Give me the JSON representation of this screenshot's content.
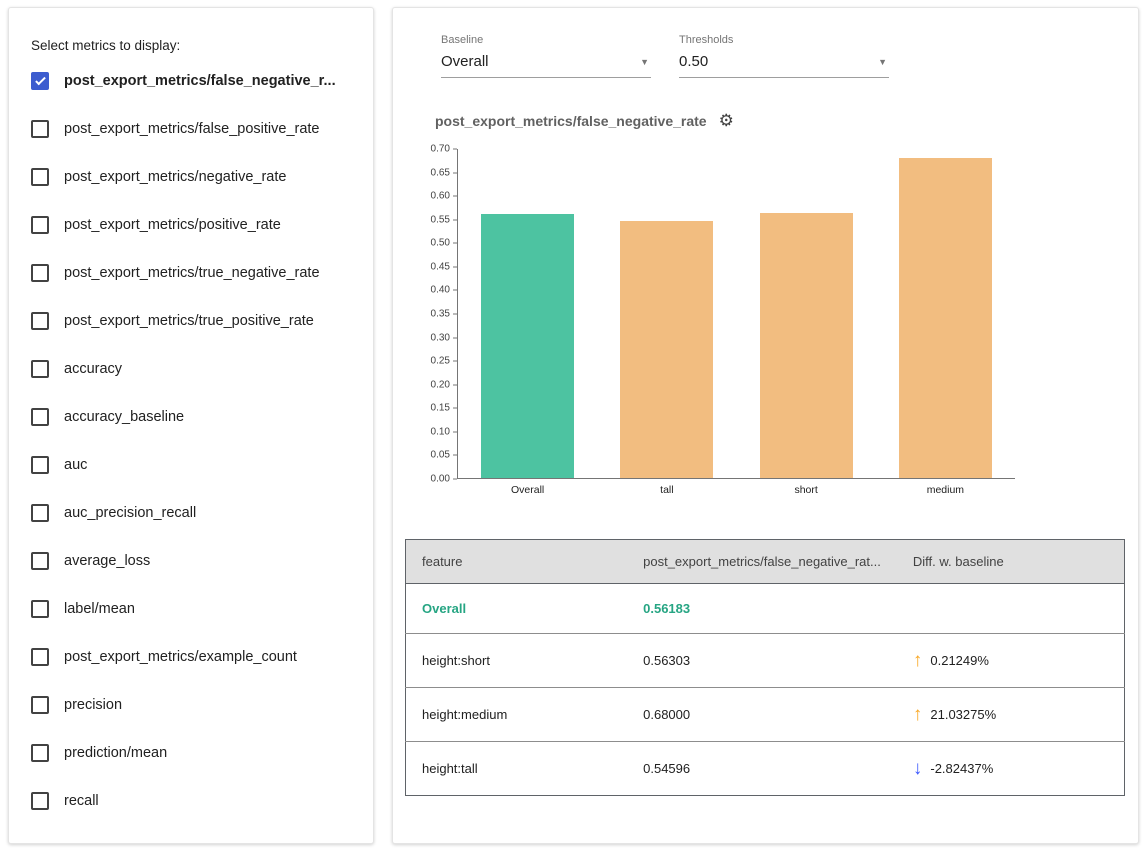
{
  "colors": {
    "teal_bar": "#4dc3a1",
    "teal_text": "#26a583",
    "orange_bar": "#f2bd80",
    "up_arrow": "#f9a825",
    "down_arrow": "#3d5afe",
    "checkbox_checked": "#3c5ccf"
  },
  "icons": {
    "gear": "⚙",
    "dropdown_arrow": "▼",
    "trend_up": "↑",
    "trend_down": "↓"
  },
  "sidebar": {
    "title": "Select metrics to display:",
    "metrics": [
      {
        "label": "post_export_metrics/false_negative_r...",
        "checked": true
      },
      {
        "label": "post_export_metrics/false_positive_rate",
        "checked": false
      },
      {
        "label": "post_export_metrics/negative_rate",
        "checked": false
      },
      {
        "label": "post_export_metrics/positive_rate",
        "checked": false
      },
      {
        "label": "post_export_metrics/true_negative_rate",
        "checked": false
      },
      {
        "label": "post_export_metrics/true_positive_rate",
        "checked": false
      },
      {
        "label": "accuracy",
        "checked": false
      },
      {
        "label": "accuracy_baseline",
        "checked": false
      },
      {
        "label": "auc",
        "checked": false
      },
      {
        "label": "auc_precision_recall",
        "checked": false
      },
      {
        "label": "average_loss",
        "checked": false
      },
      {
        "label": "label/mean",
        "checked": false
      },
      {
        "label": "post_export_metrics/example_count",
        "checked": false
      },
      {
        "label": "precision",
        "checked": false
      },
      {
        "label": "prediction/mean",
        "checked": false
      },
      {
        "label": "recall",
        "checked": false
      }
    ]
  },
  "controls": {
    "baseline": {
      "label": "Baseline",
      "value": "Overall"
    },
    "thresholds": {
      "label": "Thresholds",
      "value": "0.50"
    }
  },
  "chart": {
    "title": "post_export_metrics/false_negative_rate"
  },
  "chart_data": {
    "type": "bar",
    "categories": [
      "Overall",
      "tall",
      "short",
      "medium"
    ],
    "values": [
      0.56183,
      0.54596,
      0.56303,
      0.68
    ],
    "bar_colors": [
      "#4dc3a1",
      "#f2bd80",
      "#f2bd80",
      "#f2bd80"
    ],
    "title": "post_export_metrics/false_negative_rate",
    "xlabel": "",
    "ylabel": "",
    "ylim": [
      0,
      0.7
    ],
    "ytick_step": 0.05,
    "ytick_decimals": 2,
    "grid": false,
    "legend": false
  },
  "table": {
    "headers": [
      "feature",
      "post_export_metrics/false_negative_rat...",
      "Diff. w. baseline"
    ],
    "rows": [
      {
        "feature": "Overall",
        "value": "0.56183",
        "diff": null,
        "direction": null,
        "is_baseline": true
      },
      {
        "feature": "height:short",
        "value": "0.56303",
        "diff": "0.21249%",
        "direction": "up",
        "is_baseline": false
      },
      {
        "feature": "height:medium",
        "value": "0.68000",
        "diff": "21.03275%",
        "direction": "up",
        "is_baseline": false
      },
      {
        "feature": "height:tall",
        "value": "0.54596",
        "diff": "-2.82437%",
        "direction": "down",
        "is_baseline": false
      }
    ]
  }
}
